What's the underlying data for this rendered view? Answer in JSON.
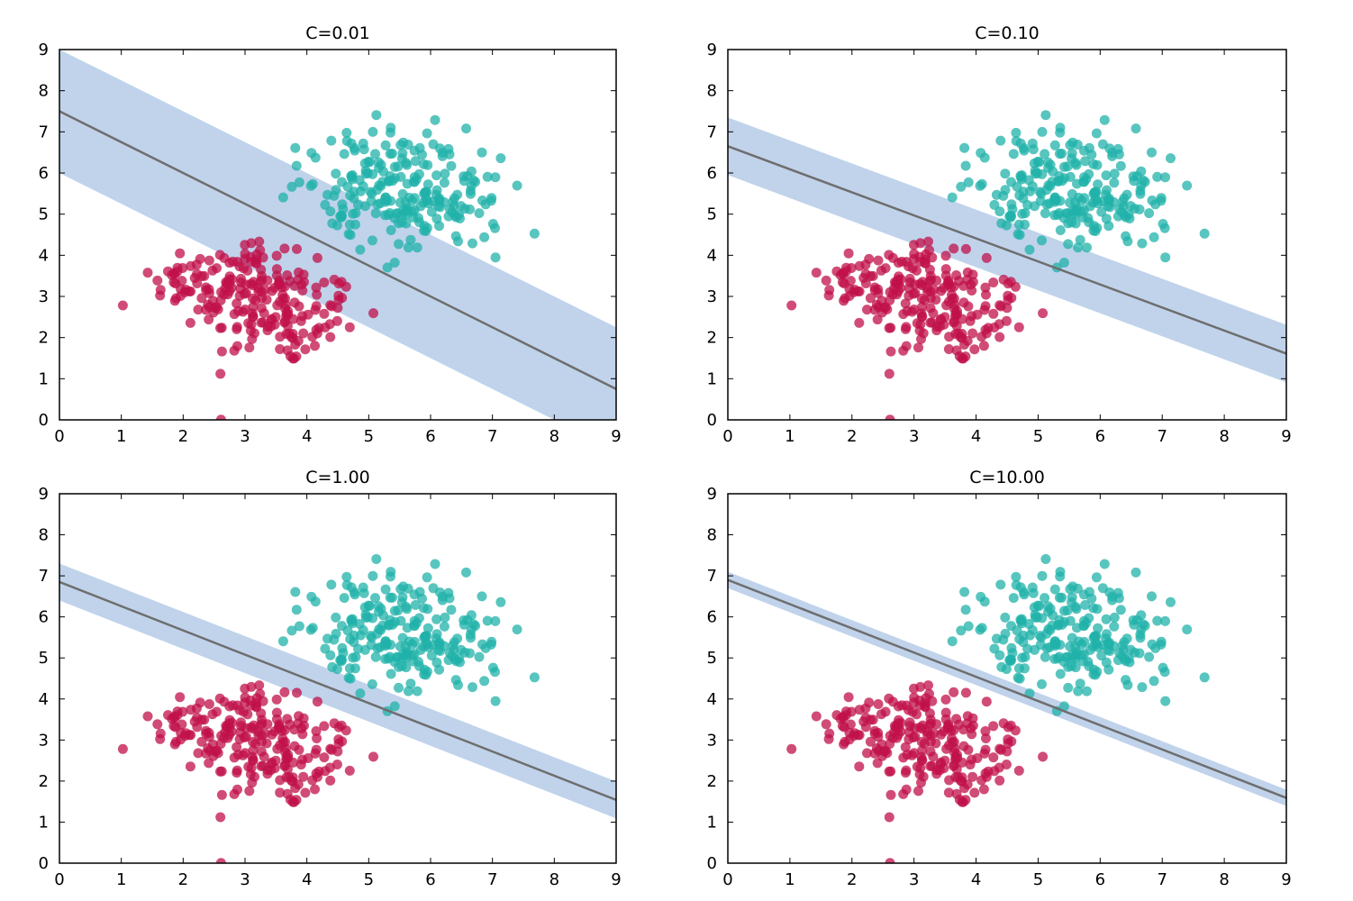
{
  "colors": {
    "class_a": "#c0104a",
    "class_b": "#20b2aa",
    "margin_band": "#b0c8e6",
    "decision_line": "#6e6e6e",
    "axes": "#000000"
  },
  "chart_data": [
    {
      "type": "scatter",
      "title": "C=0.01",
      "xlim": [
        0,
        9
      ],
      "ylim": [
        0,
        9
      ],
      "xticks": [
        "0",
        "1",
        "2",
        "3",
        "4",
        "5",
        "6",
        "7",
        "8",
        "9"
      ],
      "yticks": [
        "0",
        "1",
        "2",
        "3",
        "4",
        "5",
        "6",
        "7",
        "8",
        "9"
      ],
      "decision_boundary": {
        "slope": -0.75,
        "intercept": 7.5
      },
      "margin_halfwidth": 1.5,
      "series": [
        {
          "name": "class_a",
          "cluster_centers": [
            [
              2.8,
              3.4
            ],
            [
              3.6,
              2.5
            ]
          ],
          "spread": 0.85,
          "count": 230
        },
        {
          "name": "class_b",
          "cluster_centers": [
            [
              5.2,
              5.9
            ],
            [
              5.9,
              5.2
            ]
          ],
          "spread": 0.85,
          "count": 230
        }
      ]
    },
    {
      "type": "scatter",
      "title": "C=0.10",
      "xlim": [
        0,
        9
      ],
      "ylim": [
        0,
        9
      ],
      "xticks": [
        "0",
        "1",
        "2",
        "3",
        "4",
        "5",
        "6",
        "7",
        "8",
        "9"
      ],
      "yticks": [
        "0",
        "1",
        "2",
        "3",
        "4",
        "5",
        "6",
        "7",
        "8",
        "9"
      ],
      "decision_boundary": {
        "slope": -0.56,
        "intercept": 6.65
      },
      "margin_halfwidth": 0.7,
      "series": [
        {
          "name": "class_a",
          "cluster_centers": [
            [
              2.8,
              3.4
            ],
            [
              3.6,
              2.5
            ]
          ],
          "spread": 0.85,
          "count": 230
        },
        {
          "name": "class_b",
          "cluster_centers": [
            [
              5.2,
              5.9
            ],
            [
              5.9,
              5.2
            ]
          ],
          "spread": 0.85,
          "count": 230
        }
      ]
    },
    {
      "type": "scatter",
      "title": "C=1.00",
      "xlim": [
        0,
        9
      ],
      "ylim": [
        0,
        9
      ],
      "xticks": [
        "0",
        "1",
        "2",
        "3",
        "4",
        "5",
        "6",
        "7",
        "8",
        "9"
      ],
      "yticks": [
        "0",
        "1",
        "2",
        "3",
        "4",
        "5",
        "6",
        "7",
        "8",
        "9"
      ],
      "decision_boundary": {
        "slope": -0.59,
        "intercept": 6.85
      },
      "margin_halfwidth": 0.45,
      "series": [
        {
          "name": "class_a",
          "cluster_centers": [
            [
              2.8,
              3.4
            ],
            [
              3.6,
              2.5
            ]
          ],
          "spread": 0.85,
          "count": 230
        },
        {
          "name": "class_b",
          "cluster_centers": [
            [
              5.2,
              5.9
            ],
            [
              5.9,
              5.2
            ]
          ],
          "spread": 0.85,
          "count": 230
        }
      ]
    },
    {
      "type": "scatter",
      "title": "C=10.00",
      "xlim": [
        0,
        9
      ],
      "ylim": [
        0,
        9
      ],
      "xticks": [
        "0",
        "1",
        "2",
        "3",
        "4",
        "5",
        "6",
        "7",
        "8",
        "9"
      ],
      "yticks": [
        "0",
        "1",
        "2",
        "3",
        "4",
        "5",
        "6",
        "7",
        "8",
        "9"
      ],
      "decision_boundary": {
        "slope": -0.59,
        "intercept": 6.9
      },
      "margin_halfwidth": 0.2,
      "series": [
        {
          "name": "class_a",
          "cluster_centers": [
            [
              2.8,
              3.4
            ],
            [
              3.6,
              2.5
            ]
          ],
          "spread": 0.85,
          "count": 230
        },
        {
          "name": "class_b",
          "cluster_centers": [
            [
              5.2,
              5.9
            ],
            [
              5.9,
              5.2
            ]
          ],
          "spread": 0.85,
          "count": 230
        }
      ]
    }
  ]
}
